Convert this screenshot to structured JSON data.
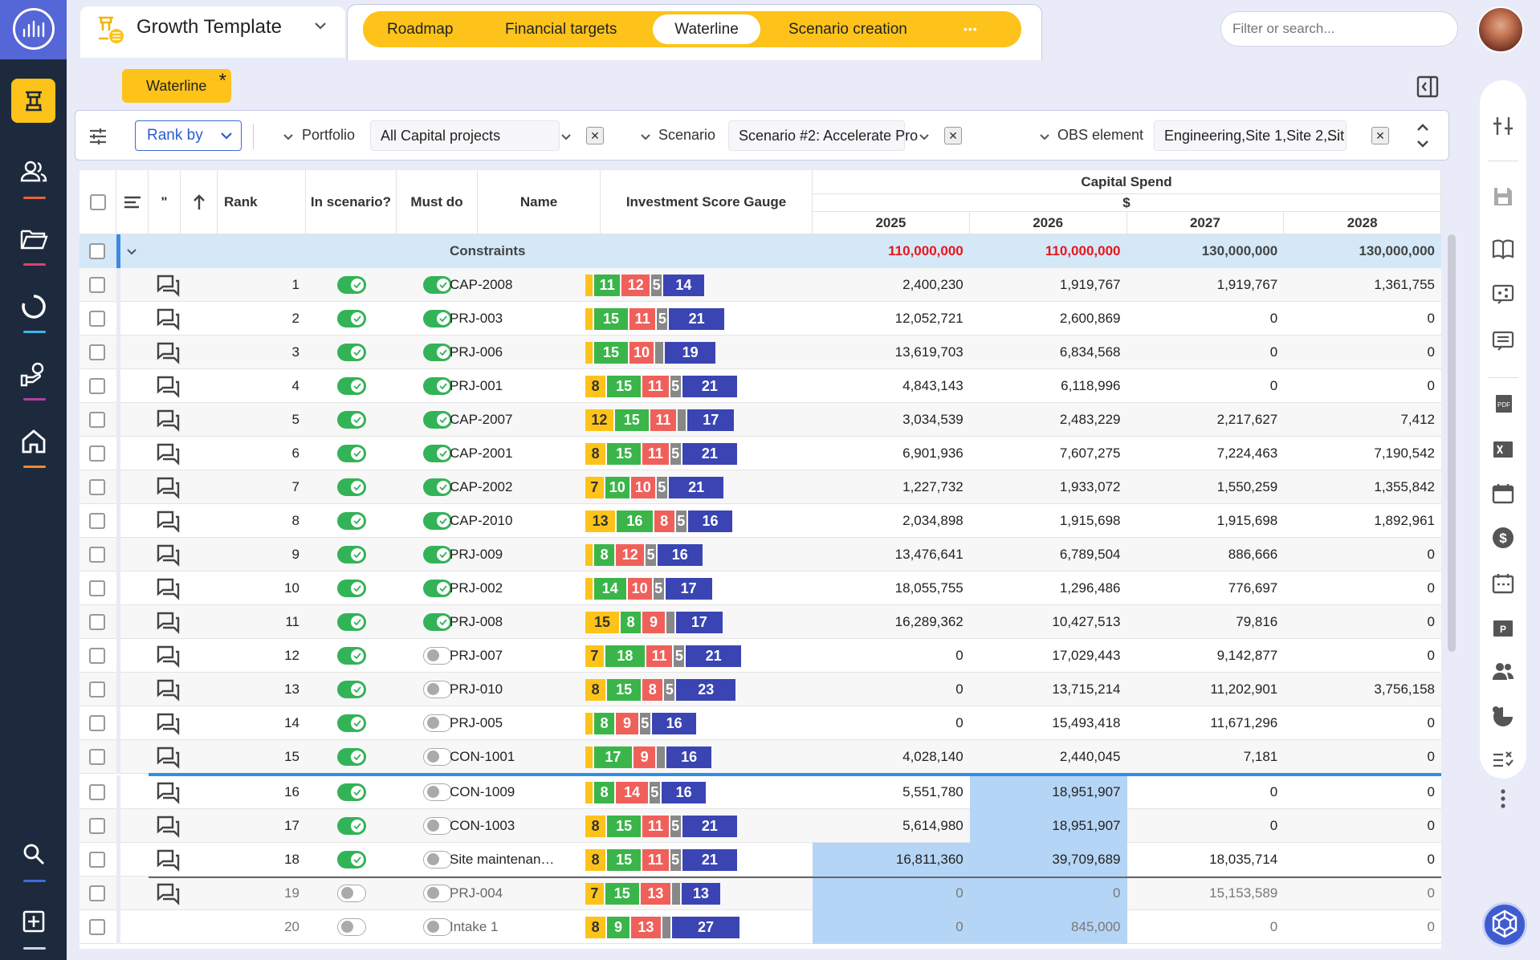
{
  "app": {
    "name": "Growth Template"
  },
  "tabs": [
    {
      "label": "Roadmap"
    },
    {
      "label": "Financial targets"
    },
    {
      "label": "Waterline"
    },
    {
      "label": "Scenario creation"
    },
    {
      "label": "•••"
    }
  ],
  "search": {
    "placeholder": "Filter or search..."
  },
  "view_chip": {
    "label": "Waterline",
    "modified_mark": "*"
  },
  "filters": {
    "rank_by": "Rank by",
    "portfolio_label": "Portfolio",
    "portfolio_value": "All Capital projects",
    "scenario_label": "Scenario",
    "scenario_value": "Scenario #2: Accelerate Pro",
    "obs_label": "OBS element",
    "obs_value": "Engineering,Site 1,Site 2,Sit",
    "obs_ellipsis": "…"
  },
  "columns": {
    "quote": "\"",
    "rank": "Rank",
    "in_scenario": "In scenario?",
    "must_do": "Must do",
    "name": "Name",
    "gauge": "Investment Score Gauge",
    "capital_spend": "Capital Spend",
    "currency": "$",
    "years": [
      "2025",
      "2026",
      "2027",
      "2028"
    ]
  },
  "constraints": {
    "label": "Constraints",
    "values": [
      "110,000,000",
      "110,000,000",
      "130,000,000",
      "130,000,000"
    ]
  },
  "rows": [
    {
      "rank": "1",
      "name": "CAP-2008",
      "in": true,
      "must": true,
      "gauge": [
        [
          "y",
          ""
        ],
        [
          "g",
          "11"
        ],
        [
          "r",
          "12"
        ],
        [
          "s",
          "5"
        ],
        [
          "b",
          "14"
        ]
      ],
      "v": [
        "2,400,230",
        "1,919,767",
        "1,919,767",
        "1,361,755"
      ],
      "hl": [
        false,
        false,
        false,
        false
      ]
    },
    {
      "rank": "2",
      "name": "PRJ-003",
      "in": true,
      "must": true,
      "gauge": [
        [
          "y",
          ""
        ],
        [
          "g",
          "15"
        ],
        [
          "r",
          "11"
        ],
        [
          "s",
          "5"
        ],
        [
          "b",
          "21"
        ]
      ],
      "v": [
        "12,052,721",
        "2,600,869",
        "0",
        "0"
      ],
      "hl": [
        false,
        false,
        false,
        false
      ]
    },
    {
      "rank": "3",
      "name": "PRJ-006",
      "in": true,
      "must": true,
      "gauge": [
        [
          "y",
          ""
        ],
        [
          "g",
          "15"
        ],
        [
          "r",
          "10"
        ],
        [
          "s",
          ""
        ],
        [
          "b",
          "19"
        ]
      ],
      "v": [
        "13,619,703",
        "6,834,568",
        "0",
        "0"
      ],
      "hl": [
        false,
        false,
        false,
        false
      ]
    },
    {
      "rank": "4",
      "name": "PRJ-001",
      "in": true,
      "must": true,
      "gauge": [
        [
          "y",
          "8"
        ],
        [
          "g",
          "15"
        ],
        [
          "r",
          "11"
        ],
        [
          "s",
          "5"
        ],
        [
          "b",
          "21"
        ]
      ],
      "v": [
        "4,843,143",
        "6,118,996",
        "0",
        "0"
      ],
      "hl": [
        false,
        false,
        false,
        false
      ]
    },
    {
      "rank": "5",
      "name": "CAP-2007",
      "in": true,
      "must": true,
      "gauge": [
        [
          "y",
          "12"
        ],
        [
          "g",
          "15"
        ],
        [
          "r",
          "11"
        ],
        [
          "s",
          ""
        ],
        [
          "b",
          "17"
        ]
      ],
      "v": [
        "3,034,539",
        "2,483,229",
        "2,217,627",
        "7,412"
      ],
      "hl": [
        false,
        false,
        false,
        false
      ]
    },
    {
      "rank": "6",
      "name": "CAP-2001",
      "in": true,
      "must": true,
      "gauge": [
        [
          "y",
          "8"
        ],
        [
          "g",
          "15"
        ],
        [
          "r",
          "11"
        ],
        [
          "s",
          "5"
        ],
        [
          "b",
          "21"
        ]
      ],
      "v": [
        "6,901,936",
        "7,607,275",
        "7,224,463",
        "7,190,542"
      ],
      "hl": [
        false,
        false,
        false,
        false
      ]
    },
    {
      "rank": "7",
      "name": "CAP-2002",
      "in": true,
      "must": true,
      "gauge": [
        [
          "y",
          "7"
        ],
        [
          "g",
          "10"
        ],
        [
          "r",
          "10"
        ],
        [
          "s",
          "5"
        ],
        [
          "b",
          "21"
        ]
      ],
      "v": [
        "1,227,732",
        "1,933,072",
        "1,550,259",
        "1,355,842"
      ],
      "hl": [
        false,
        false,
        false,
        false
      ]
    },
    {
      "rank": "8",
      "name": "CAP-2010",
      "in": true,
      "must": true,
      "gauge": [
        [
          "y",
          "13"
        ],
        [
          "g",
          "16"
        ],
        [
          "r",
          "8"
        ],
        [
          "s",
          "5"
        ],
        [
          "b",
          "16"
        ]
      ],
      "v": [
        "2,034,898",
        "1,915,698",
        "1,915,698",
        "1,892,961"
      ],
      "hl": [
        false,
        false,
        false,
        false
      ]
    },
    {
      "rank": "9",
      "name": "PRJ-009",
      "in": true,
      "must": true,
      "gauge": [
        [
          "y",
          ""
        ],
        [
          "g",
          "8"
        ],
        [
          "r",
          "12"
        ],
        [
          "s",
          "5"
        ],
        [
          "b",
          "16"
        ]
      ],
      "v": [
        "13,476,641",
        "6,789,504",
        "886,666",
        "0"
      ],
      "hl": [
        false,
        false,
        false,
        false
      ]
    },
    {
      "rank": "10",
      "name": "PRJ-002",
      "in": true,
      "must": true,
      "gauge": [
        [
          "y",
          ""
        ],
        [
          "g",
          "14"
        ],
        [
          "r",
          "10"
        ],
        [
          "s",
          "5"
        ],
        [
          "b",
          "17"
        ]
      ],
      "v": [
        "18,055,755",
        "1,296,486",
        "776,697",
        "0"
      ],
      "hl": [
        false,
        false,
        false,
        false
      ]
    },
    {
      "rank": "11",
      "name": "PRJ-008",
      "in": true,
      "must": true,
      "gauge": [
        [
          "y",
          "15"
        ],
        [
          "g",
          "8"
        ],
        [
          "r",
          "9"
        ],
        [
          "s",
          ""
        ],
        [
          "b",
          "17"
        ]
      ],
      "v": [
        "16,289,362",
        "10,427,513",
        "79,816",
        "0"
      ],
      "hl": [
        false,
        false,
        false,
        false
      ]
    },
    {
      "rank": "12",
      "name": "PRJ-007",
      "in": true,
      "must": false,
      "gauge": [
        [
          "y",
          "7"
        ],
        [
          "g",
          "18"
        ],
        [
          "r",
          "11"
        ],
        [
          "s",
          "5"
        ],
        [
          "b",
          "21"
        ]
      ],
      "v": [
        "0",
        "17,029,443",
        "9,142,877",
        "0"
      ],
      "hl": [
        false,
        false,
        false,
        false
      ]
    },
    {
      "rank": "13",
      "name": "PRJ-010",
      "in": true,
      "must": false,
      "gauge": [
        [
          "y",
          "8"
        ],
        [
          "g",
          "15"
        ],
        [
          "r",
          "8"
        ],
        [
          "s",
          "5"
        ],
        [
          "b",
          "23"
        ]
      ],
      "v": [
        "0",
        "13,715,214",
        "11,202,901",
        "3,756,158"
      ],
      "hl": [
        false,
        false,
        false,
        false
      ]
    },
    {
      "rank": "14",
      "name": "PRJ-005",
      "in": true,
      "must": false,
      "gauge": [
        [
          "y",
          ""
        ],
        [
          "g",
          "8"
        ],
        [
          "r",
          "9"
        ],
        [
          "s",
          "5"
        ],
        [
          "b",
          "16"
        ]
      ],
      "v": [
        "0",
        "15,493,418",
        "11,671,296",
        "0"
      ],
      "hl": [
        false,
        false,
        false,
        false
      ]
    },
    {
      "rank": "15",
      "name": "CON-1001",
      "in": true,
      "must": false,
      "gauge": [
        [
          "y",
          ""
        ],
        [
          "g",
          "17"
        ],
        [
          "r",
          "9"
        ],
        [
          "s",
          ""
        ],
        [
          "b",
          "16"
        ]
      ],
      "v": [
        "4,028,140",
        "2,440,045",
        "7,181",
        "0"
      ],
      "hl": [
        false,
        false,
        false,
        false
      ]
    },
    {
      "rank": "16",
      "name": "CON-1009",
      "in": true,
      "must": false,
      "gauge": [
        [
          "y",
          ""
        ],
        [
          "g",
          "8"
        ],
        [
          "r",
          "14"
        ],
        [
          "s",
          "5"
        ],
        [
          "b",
          "16"
        ]
      ],
      "v": [
        "5,551,780",
        "18,951,907",
        "0",
        "0"
      ],
      "hl": [
        false,
        true,
        false,
        false
      ]
    },
    {
      "rank": "17",
      "name": "CON-1003",
      "in": true,
      "must": false,
      "gauge": [
        [
          "y",
          "8"
        ],
        [
          "g",
          "15"
        ],
        [
          "r",
          "11"
        ],
        [
          "s",
          "5"
        ],
        [
          "b",
          "21"
        ]
      ],
      "v": [
        "5,614,980",
        "18,951,907",
        "0",
        "0"
      ],
      "hl": [
        false,
        true,
        false,
        false
      ]
    },
    {
      "rank": "18",
      "name": "Site maintenan…",
      "in": true,
      "must": false,
      "gauge": [
        [
          "y",
          "8"
        ],
        [
          "g",
          "15"
        ],
        [
          "r",
          "11"
        ],
        [
          "s",
          "5"
        ],
        [
          "b",
          "21"
        ]
      ],
      "v": [
        "16,811,360",
        "39,709,689",
        "18,035,714",
        "0"
      ],
      "hl": [
        true,
        true,
        false,
        false
      ]
    },
    {
      "rank": "19",
      "name": "PRJ-004",
      "in": false,
      "must": false,
      "gauge": [
        [
          "y",
          "7"
        ],
        [
          "g",
          "15"
        ],
        [
          "r",
          "13"
        ],
        [
          "s",
          ""
        ],
        [
          "b",
          "13"
        ]
      ],
      "v": [
        "0",
        "0",
        "15,153,589",
        "0"
      ],
      "hl": [
        true,
        true,
        false,
        false
      ]
    },
    {
      "rank": "20",
      "name": "Intake 1",
      "in": false,
      "must": false,
      "gauge": [
        [
          "y",
          "8"
        ],
        [
          "g",
          "9"
        ],
        [
          "r",
          "13"
        ],
        [
          "s",
          ""
        ],
        [
          "b",
          "27"
        ]
      ],
      "v": [
        "0",
        "845,000",
        "0",
        "0"
      ],
      "hl": [
        true,
        true,
        false,
        false
      ]
    }
  ],
  "colors": {
    "accent": "#fdc31a",
    "nav": "#1d2a3d",
    "over_limit": "#e8161b",
    "highlight": "#b5d5f6",
    "waterline": "#2f8ee8"
  }
}
